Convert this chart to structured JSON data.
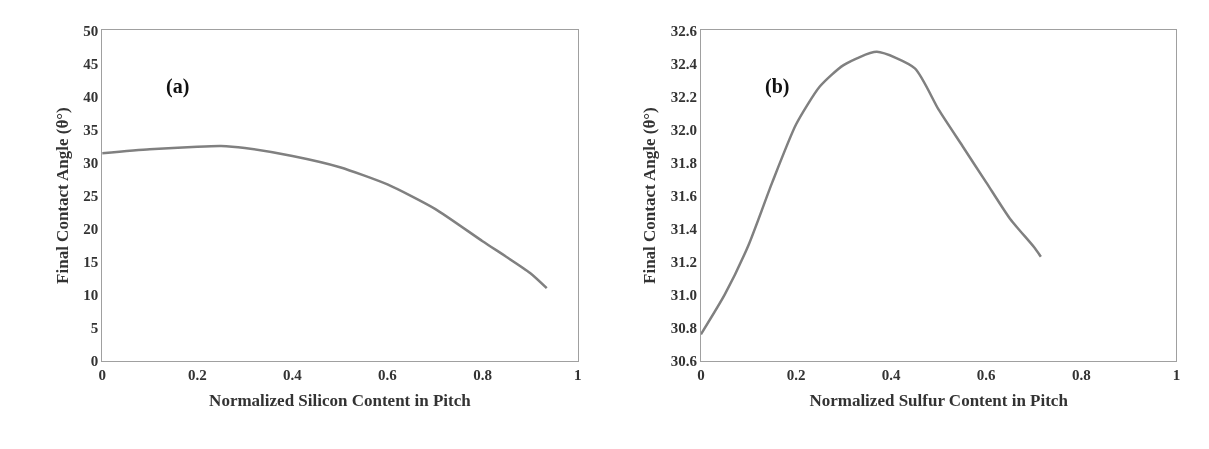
{
  "chart_data": [
    {
      "type": "line",
      "xlabel": "Normalized Silicon Content in Pitch",
      "ylabel": "Final Contact Angle (θ°)",
      "annotations": [
        "(a)"
      ],
      "x": [
        0,
        0.1,
        0.2,
        0.25,
        0.3,
        0.4,
        0.5,
        0.6,
        0.7,
        0.8,
        0.9,
        0.935
      ],
      "series": [
        {
          "color": "#808080",
          "values": [
            31.4,
            32.0,
            32.4,
            32.5,
            32.2,
            31.0,
            29.3,
            26.7,
            23.0,
            18.1,
            13.3,
            11.0
          ]
        }
      ],
      "xlim": [
        0,
        1
      ],
      "xticks": [
        0,
        0.2,
        0.4,
        0.6,
        0.8,
        1
      ],
      "ylim": [
        0,
        50
      ],
      "yticks": [
        0,
        5,
        10,
        15,
        20,
        25,
        30,
        35,
        40,
        45,
        50
      ],
      "marker": "none",
      "line_style": "solid"
    },
    {
      "type": "line",
      "xlabel": "Normalized Sulfur Content in Pitch",
      "ylabel": "Final Contact Angle (θ°)",
      "annotations": [
        "(b)"
      ],
      "x": [
        0,
        0.05,
        0.1,
        0.15,
        0.2,
        0.25,
        0.3,
        0.37,
        0.45,
        0.5,
        0.55,
        0.6,
        0.65,
        0.7,
        0.715
      ],
      "series": [
        {
          "color": "#808080",
          "values": [
            30.76,
            31.0,
            31.3,
            31.68,
            32.03,
            32.26,
            32.39,
            32.47,
            32.37,
            32.12,
            31.9,
            31.68,
            31.46,
            31.29,
            31.23
          ]
        }
      ],
      "xlim": [
        0,
        1
      ],
      "xticks": [
        0,
        0.2,
        0.4,
        0.6,
        0.8,
        1
      ],
      "ylim": [
        30.6,
        32.6
      ],
      "yticks": [
        {
          "value": 30.6,
          "label": "30.6"
        },
        {
          "value": 30.8,
          "label": "30.8"
        },
        {
          "value": 31.0,
          "label": "31.0"
        },
        {
          "value": 31.2,
          "label": "31.2"
        },
        {
          "value": 31.4,
          "label": "31.4"
        },
        {
          "value": 31.6,
          "label": "31.6"
        },
        {
          "value": 31.8,
          "label": "31.8"
        },
        {
          "value": 32.0,
          "label": "32.0"
        },
        {
          "value": 32.2,
          "label": "32.2"
        },
        {
          "value": 32.4,
          "label": "32.4"
        },
        {
          "value": 32.6,
          "label": "32.6"
        }
      ],
      "marker": "none",
      "line_style": "solid"
    }
  ]
}
